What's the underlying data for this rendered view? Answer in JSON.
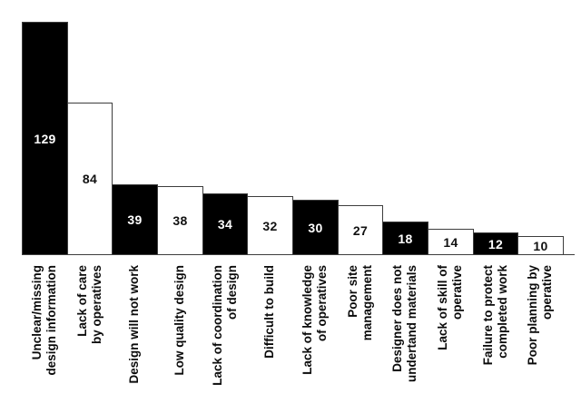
{
  "chart_data": {
    "type": "bar",
    "title": "",
    "xlabel": "",
    "ylabel": "",
    "grid": false,
    "legend": null,
    "ylim": [
      0,
      129
    ],
    "categories": [
      "Unclear/missing design information",
      "Lack of care by operatives",
      "Design will not work",
      "Low quality design",
      "Lack of coordination of design",
      "Difficult to build",
      "Lack of knowledge of operatives",
      "Poor site management",
      "Designer does not undertand materials",
      "Lack of skill of operative",
      "Failure to protect completed work",
      "Poor planning by operative"
    ],
    "category_lines": [
      [
        "Unclear/missing",
        "design information"
      ],
      [
        "Lack of care",
        "by operatives"
      ],
      [
        "Design will not work"
      ],
      [
        "Low quality design"
      ],
      [
        "Lack of coordination",
        "of design"
      ],
      [
        "Difficult to build"
      ],
      [
        "Lack of knowledge",
        "of operatives"
      ],
      [
        "Poor site",
        "management"
      ],
      [
        "Designer does not",
        "undertand materials"
      ],
      [
        "Lack of skill of",
        "operative"
      ],
      [
        "Failure to protect",
        "completed work"
      ],
      [
        "Poor planning by",
        "operative"
      ]
    ],
    "values": [
      129,
      84,
      39,
      38,
      34,
      32,
      30,
      27,
      18,
      14,
      12,
      10
    ],
    "bar_fills": [
      "#000000",
      "#ffffff",
      "#000000",
      "#ffffff",
      "#000000",
      "#ffffff",
      "#000000",
      "#ffffff",
      "#000000",
      "#ffffff",
      "#000000",
      "#ffffff"
    ],
    "value_labels_inside_bars": true
  },
  "colors": {
    "bar_black": "#000000",
    "bar_white": "#ffffff",
    "outline": "#3d3d3d",
    "background": "#ffffff",
    "value_on_black": "#ffffff",
    "value_on_white": "#111111"
  }
}
